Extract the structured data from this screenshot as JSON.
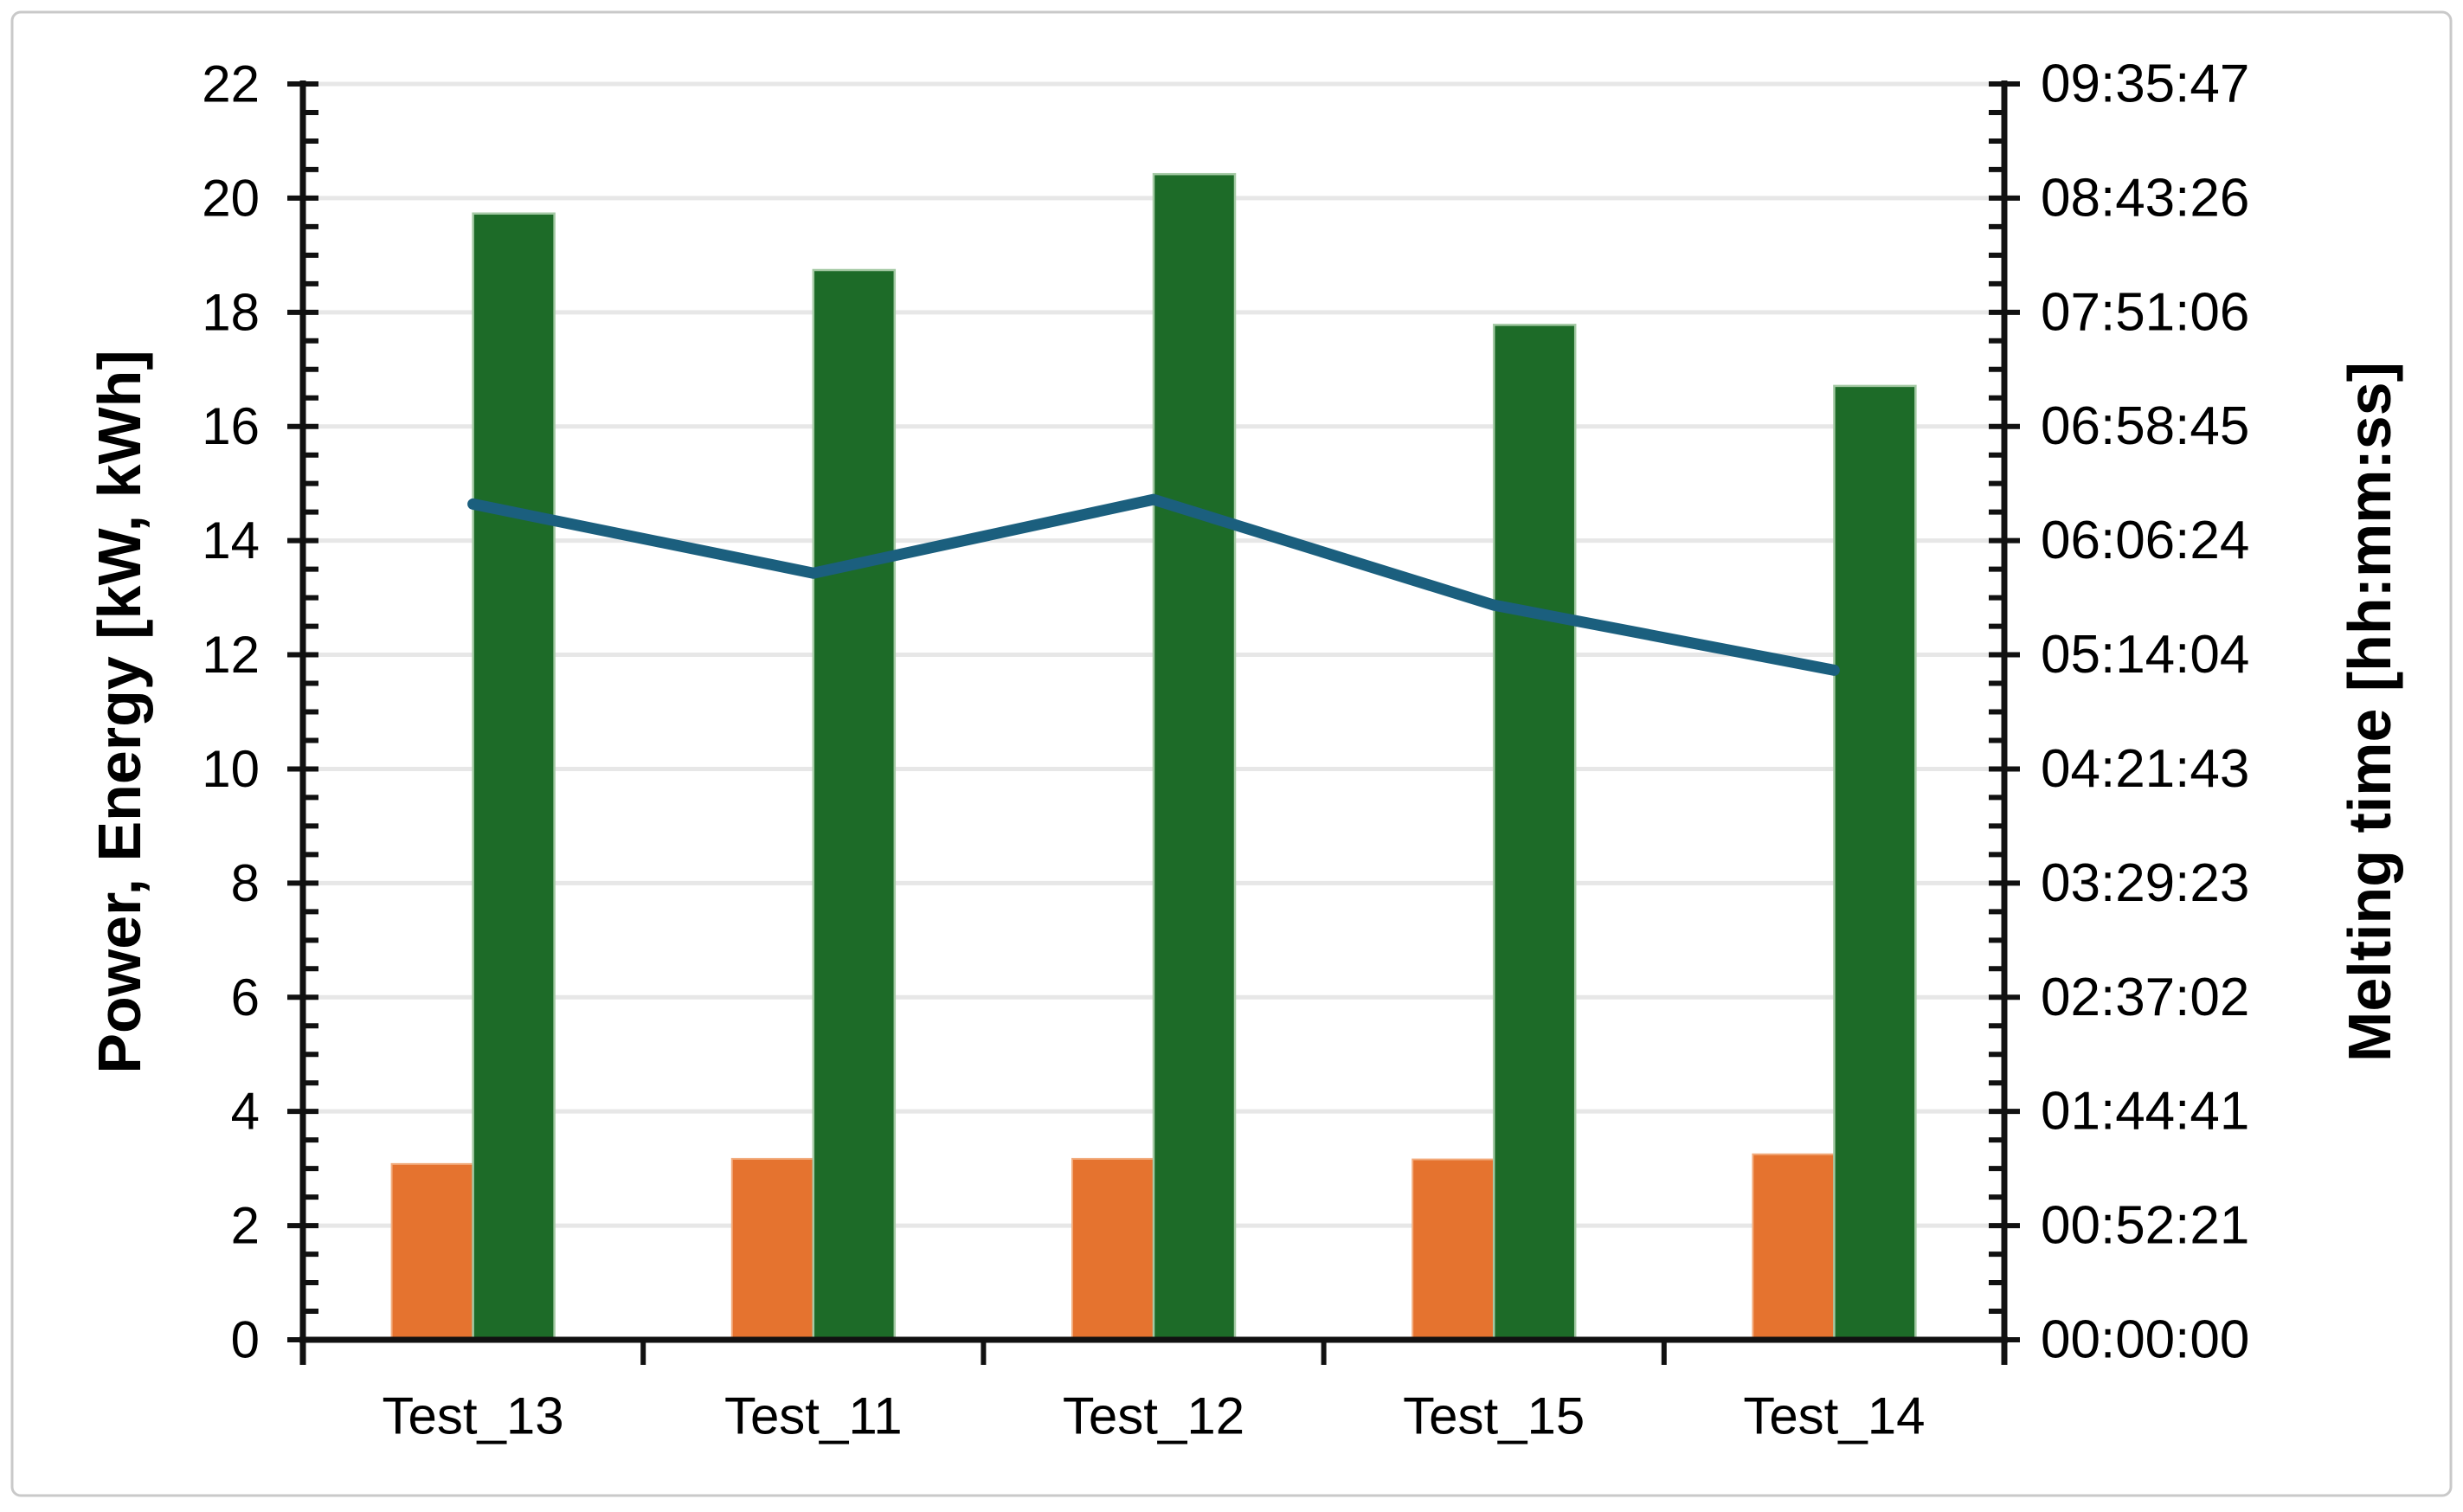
{
  "figure": {
    "background": "#FFFFFF",
    "border_color": "#C9C9C9"
  },
  "chart_data": {
    "type": "bar",
    "subtype": "grouped-bars-with-line-overlay",
    "categories": [
      "Test_13",
      "Test_11",
      "Test_12",
      "Test_15",
      "Test_14"
    ],
    "series": [
      {
        "name": "power-orange-bar",
        "kind": "bar",
        "axis": "left",
        "color": "#E5732F",
        "edge_color": "#F2AC7E",
        "values": [
          3.08,
          3.17,
          3.17,
          3.16,
          3.25
        ]
      },
      {
        "name": "energy-green-bar",
        "kind": "bar",
        "axis": "left",
        "color": "#1D6B28",
        "edge_color": "#A4C9A4",
        "values": [
          19.73,
          18.74,
          20.42,
          17.78,
          16.71
        ]
      },
      {
        "name": "melting-time-line",
        "kind": "line",
        "axis": "right",
        "color": "#1B5F7E",
        "values_left_axis_equivalent": [
          14.64,
          13.43,
          14.72,
          12.87,
          11.73
        ],
        "values_hhmmss_estimated": [
          "06:23:07",
          "05:51:29",
          "06:25:15",
          "05:36:50",
          "05:07:00"
        ]
      }
    ],
    "left_axis": {
      "title": "Power, Energy [kW, kWh]",
      "min": 0,
      "max": 22,
      "major_step": 2,
      "minor_step": 0.5,
      "tick_labels": [
        "0",
        "2",
        "4",
        "6",
        "8",
        "10",
        "12",
        "14",
        "16",
        "18",
        "20",
        "22"
      ]
    },
    "right_axis": {
      "title": "Melting time [hh:mm:ss]",
      "min_label": "00:00:00",
      "max_label": "09:35:47",
      "tick_labels_top_to_bottom": [
        "09:35:47",
        "08:43:26",
        "07:51:06",
        "06:58:45",
        "06:06:24",
        "05:14:04",
        "04:21:43",
        "03:29:23",
        "02:37:02",
        "01:44:41",
        "00:52:21",
        "00:00:00"
      ]
    },
    "x_axis": {
      "tick_labels": [
        "Test_13",
        "Test_11",
        "Test_12",
        "Test_15",
        "Test_14"
      ]
    },
    "grid": "horizontal-major",
    "legend": "none",
    "colors": {
      "gridline": "#E7E7E7",
      "axis": "#111111",
      "text": "#000000"
    }
  }
}
